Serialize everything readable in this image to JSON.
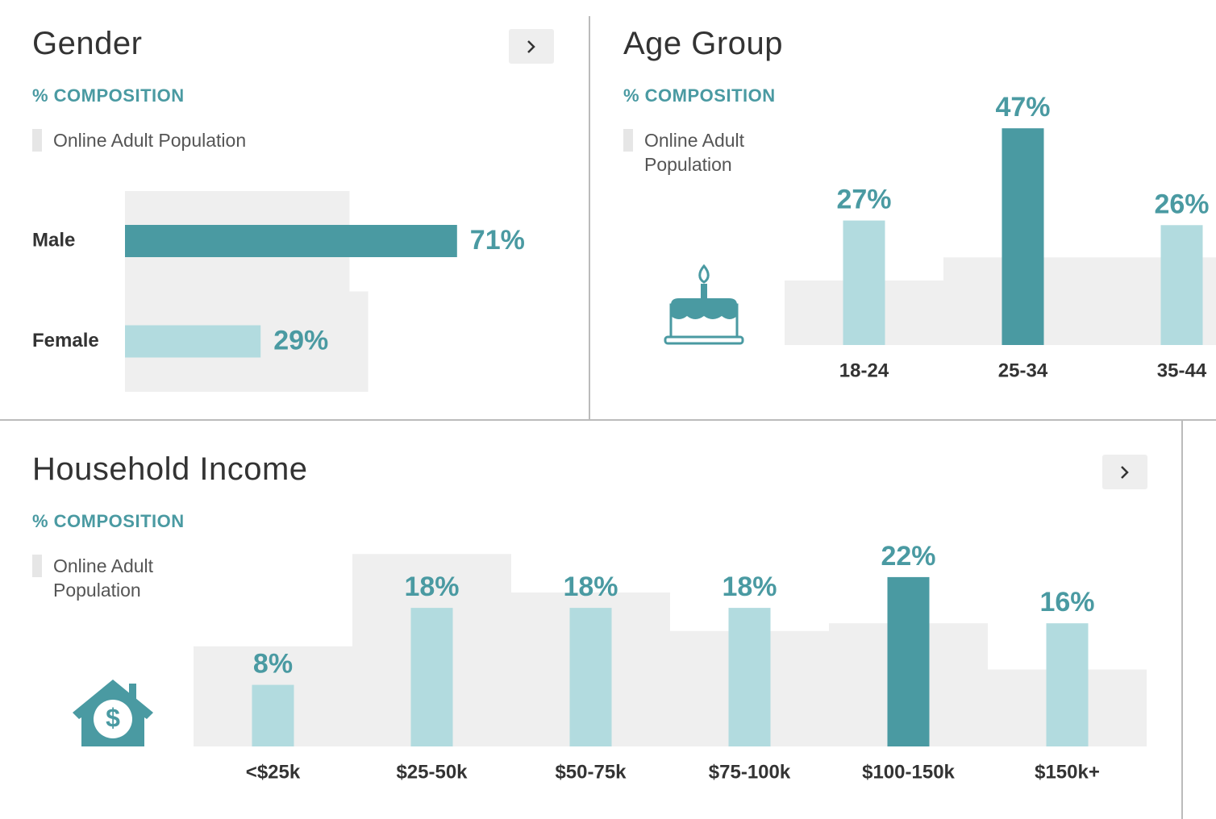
{
  "chart_data": [
    {
      "type": "bar",
      "horizontal": true,
      "title": "Gender",
      "subtitle": "% COMPOSITION",
      "categories": [
        "Male",
        "Female"
      ],
      "series": [
        {
          "values": [
            71,
            29
          ],
          "value_labels": [
            "71%",
            "29%"
          ],
          "colors": [
            "#4a9aa2",
            "#b2dbdf"
          ]
        },
        {
          "name": "Online Adult Population",
          "color": "#efefef",
          "values": [
            48,
            52
          ]
        }
      ]
    },
    {
      "type": "bar",
      "horizontal": false,
      "title": "Age Group",
      "subtitle": "% COMPOSITION",
      "categories": [
        "18-24",
        "25-34",
        "35-44"
      ],
      "series": [
        {
          "values": [
            27,
            47,
            26
          ],
          "value_labels": [
            "27%",
            "47%",
            "26%"
          ],
          "colors": [
            "#b2dbdf",
            "#4a9aa2",
            "#b2dbdf"
          ]
        },
        {
          "name": "Online Adult Population",
          "color": "#efefef",
          "values": [
            14,
            19,
            19
          ]
        }
      ]
    },
    {
      "type": "bar",
      "horizontal": false,
      "title": "Household Income",
      "subtitle": "% COMPOSITION",
      "categories": [
        "<$25k",
        "$25-50k",
        "$50-75k",
        "$75-100k",
        "$100-150k",
        "$150k+"
      ],
      "series": [
        {
          "values": [
            8,
            18,
            18,
            18,
            22,
            16
          ],
          "value_labels": [
            "8%",
            "18%",
            "18%",
            "18%",
            "22%",
            "16%"
          ],
          "colors": [
            "#b2dbdf",
            "#b2dbdf",
            "#b2dbdf",
            "#b2dbdf",
            "#4a9aa2",
            "#b2dbdf"
          ]
        },
        {
          "name": "Online Adult Population",
          "color": "#efefef",
          "values": [
            13,
            25,
            20,
            15,
            16,
            10
          ]
        }
      ]
    }
  ]
}
